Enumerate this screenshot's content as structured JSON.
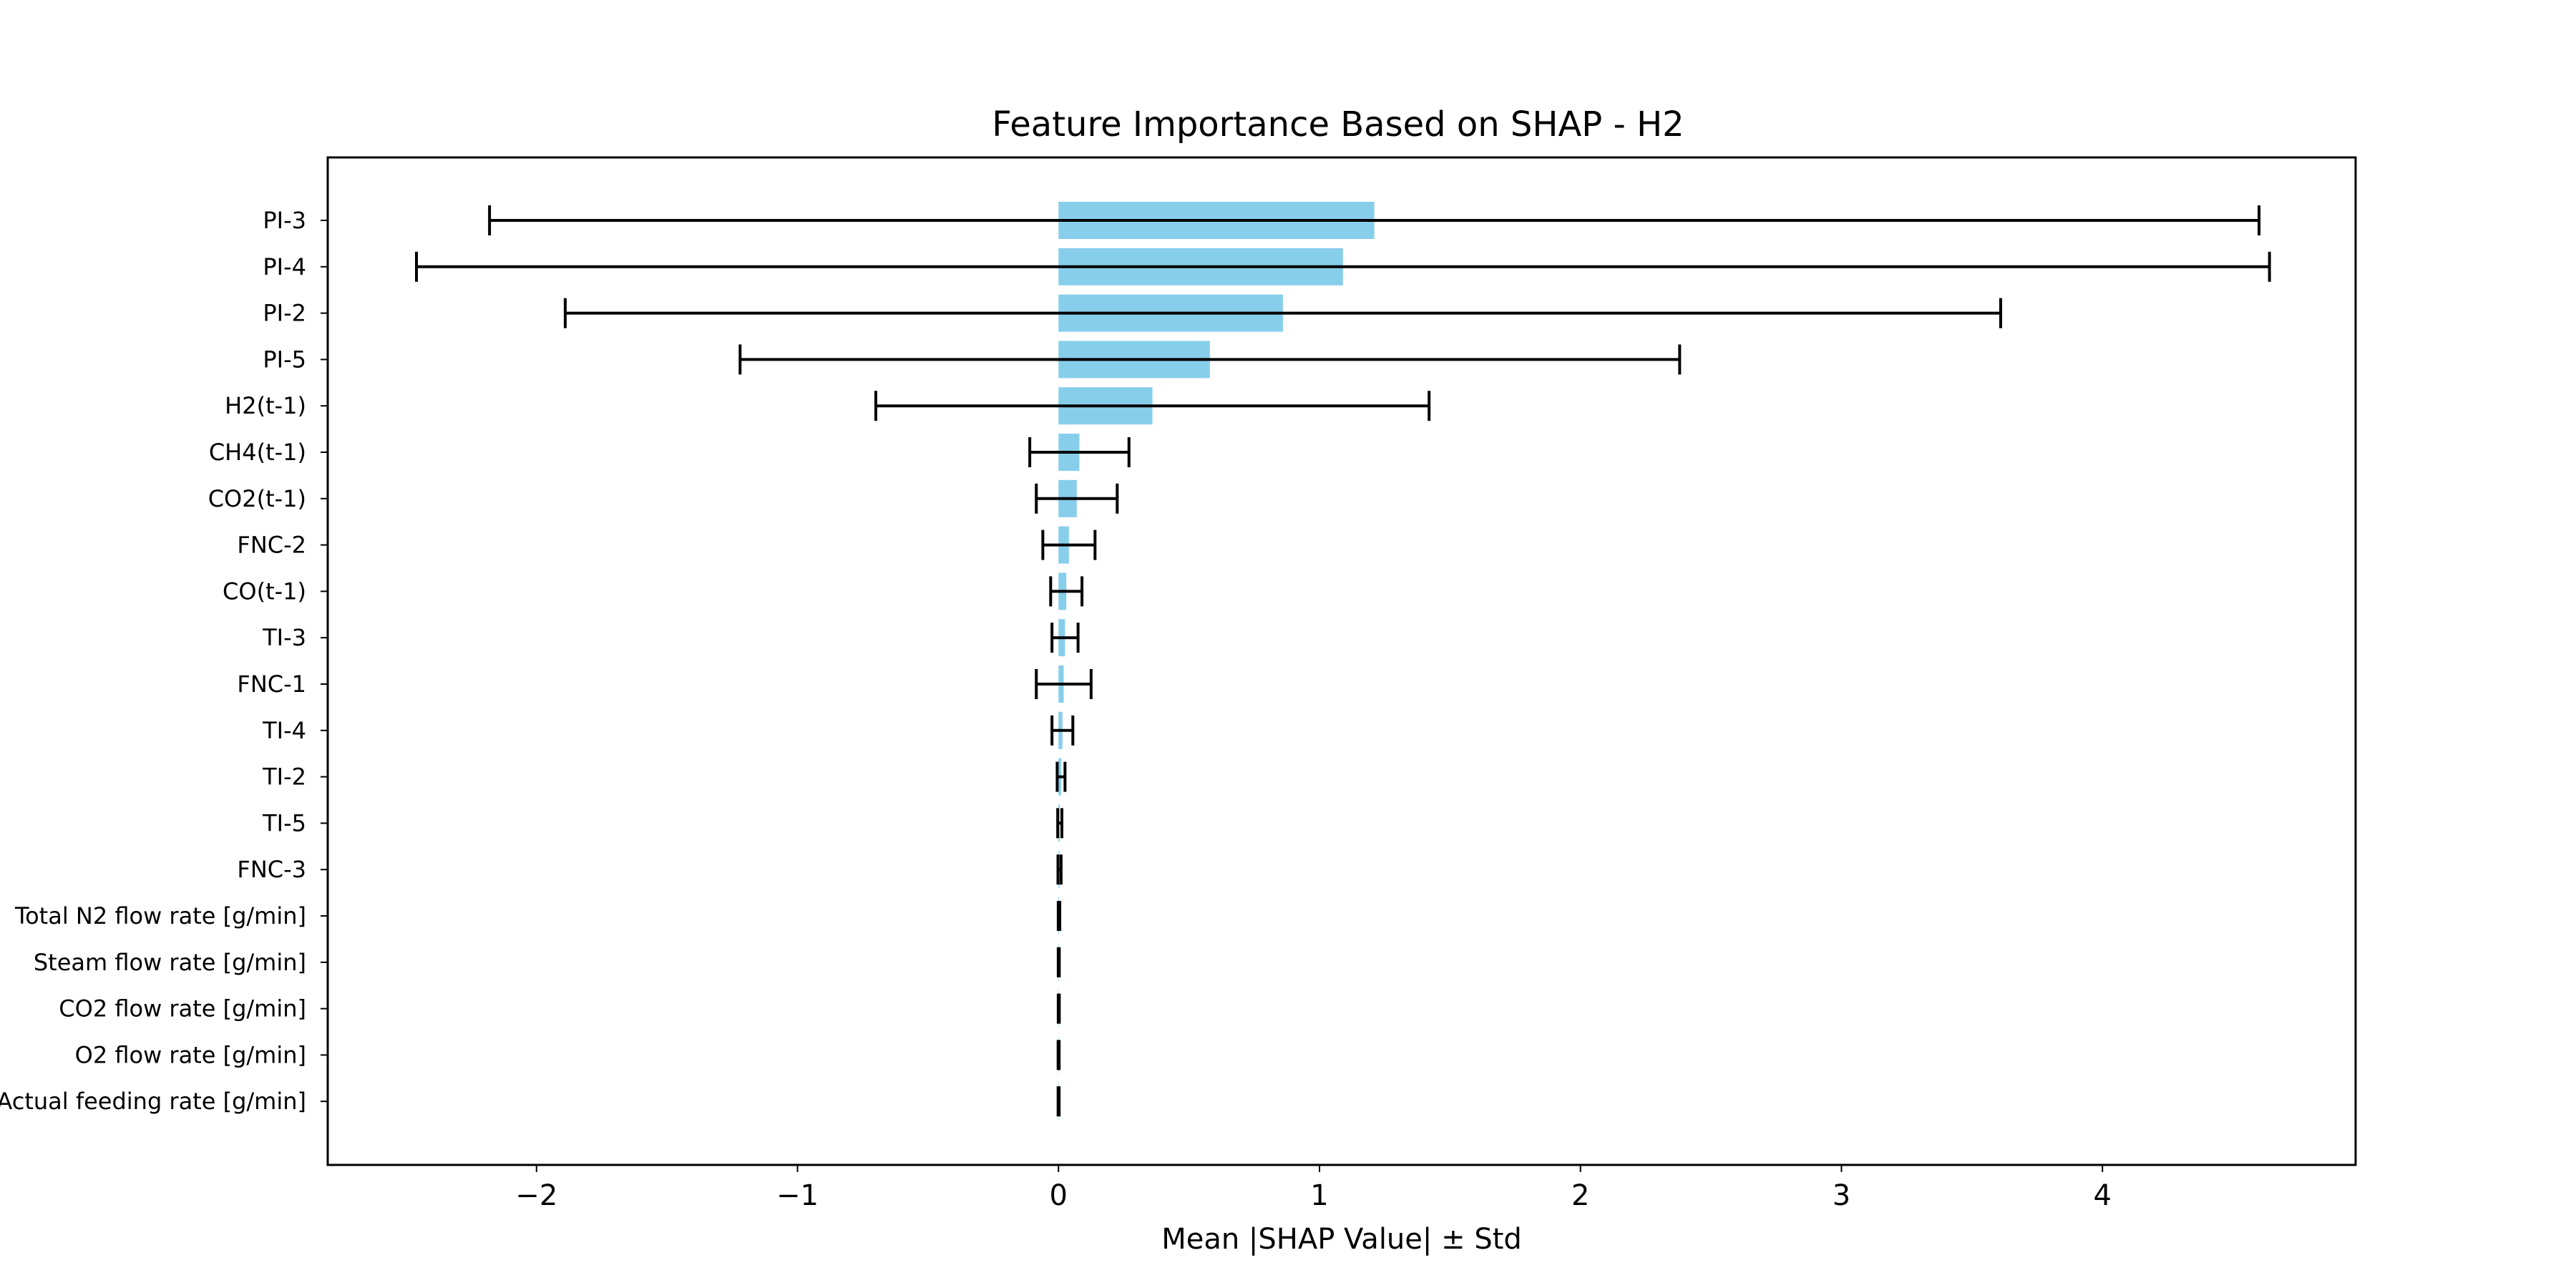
{
  "chart_data": {
    "type": "bar",
    "orientation": "horizontal",
    "title": "Feature Importance Based on SHAP - H2",
    "xlabel": "Mean |SHAP Value| ± Std",
    "ylabel": "",
    "xlim": [
      -2.8,
      4.97
    ],
    "xticks": [
      -2,
      -1,
      0,
      1,
      2,
      3,
      4
    ],
    "xtick_labels": [
      "−2",
      "−1",
      "0",
      "1",
      "2",
      "3",
      "4"
    ],
    "grid": false,
    "legend": "none",
    "colors": {
      "bar": "#87ceeb",
      "error_bar": "#000000",
      "axes": "#000000"
    },
    "categories": [
      "PI-3",
      "PI-4",
      "PI-2",
      "PI-5",
      "H2(t-1)",
      "CH4(t-1)",
      "CO2(t-1)",
      "FNC-2",
      "CO(t-1)",
      "TI-3",
      "FNC-1",
      "TI-4",
      "TI-2",
      "TI-5",
      "FNC-3",
      "Total N2 flow rate [g/min]",
      "Steam flow rate [g/min]",
      "CO2 flow rate [g/min]",
      "O2 flow rate [g/min]",
      "Actual feeding rate [g/min]"
    ],
    "values": [
      1.21,
      1.09,
      0.86,
      0.58,
      0.36,
      0.08,
      0.07,
      0.04,
      0.03,
      0.025,
      0.02,
      0.015,
      0.01,
      0.005,
      0.004,
      0.002,
      0.001,
      0.001,
      0.0005,
      0.0005
    ],
    "errors": [
      3.39,
      3.55,
      2.75,
      1.8,
      1.06,
      0.19,
      0.155,
      0.1,
      0.06,
      0.05,
      0.105,
      0.04,
      0.015,
      0.008,
      0.006,
      0.003,
      0.002,
      0.002,
      0.002,
      0.002
    ]
  }
}
